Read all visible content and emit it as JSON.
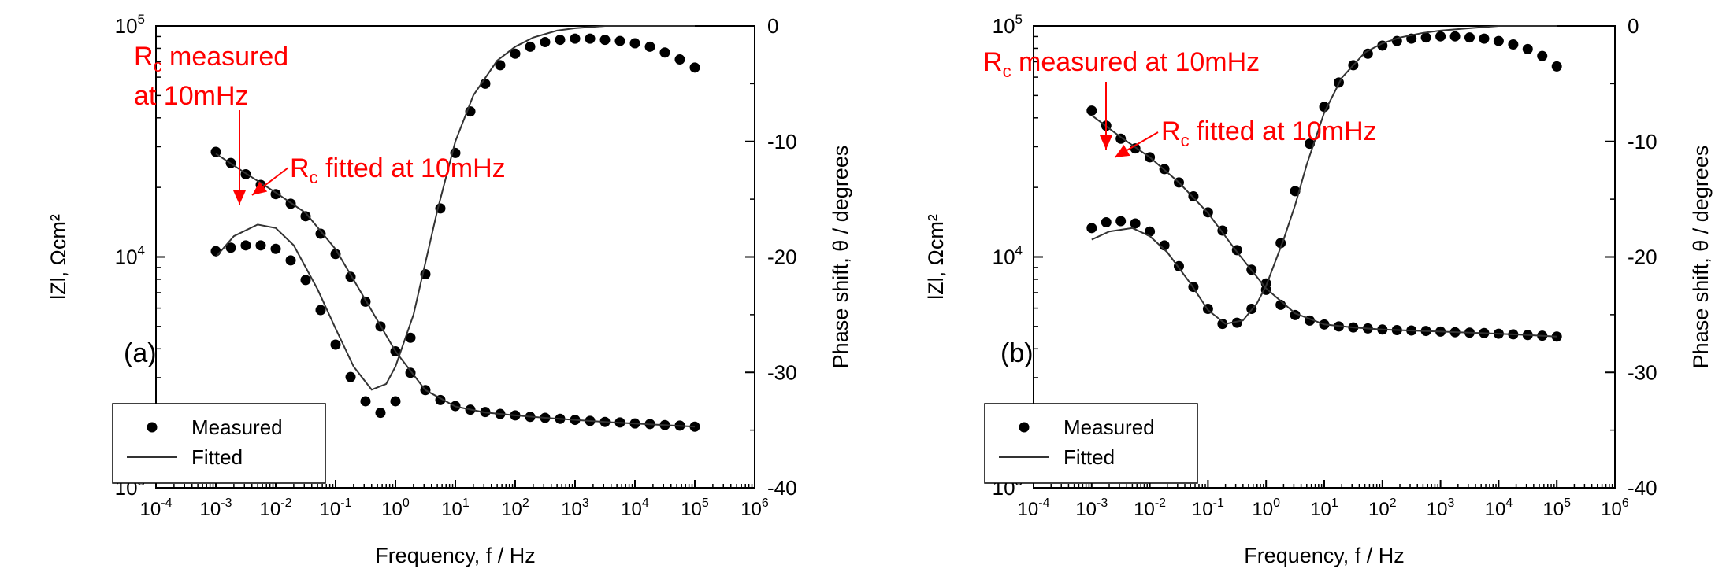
{
  "chart_data": [
    {
      "type": "scatter",
      "panel_label": "(a)",
      "xlabel": "Frequency, f / Hz",
      "ylabel_left": "lZl, Ωcm²",
      "ylabel_right": "Phase shift, θ / degrees",
      "x_scale": "log",
      "y_left_scale": "log",
      "xlim": [
        0.0001,
        1000000
      ],
      "y_left_lim": [
        1000,
        100000
      ],
      "y_right_lim": [
        -40,
        0
      ],
      "x_ticks": [
        {
          "base": "10",
          "exp": "-4"
        },
        {
          "base": "10",
          "exp": "-3"
        },
        {
          "base": "10",
          "exp": "-2"
        },
        {
          "base": "10",
          "exp": "-1"
        },
        {
          "base": "10",
          "exp": "0"
        },
        {
          "base": "10",
          "exp": "1"
        },
        {
          "base": "10",
          "exp": "2"
        },
        {
          "base": "10",
          "exp": "3"
        },
        {
          "base": "10",
          "exp": "4"
        },
        {
          "base": "10",
          "exp": "5"
        },
        {
          "base": "10",
          "exp": "6"
        }
      ],
      "y_left_ticks": [
        {
          "base": "10",
          "exp": "3"
        },
        {
          "base": "10",
          "exp": "4"
        },
        {
          "base": "10",
          "exp": "5"
        }
      ],
      "y_right_ticks": [
        "0",
        "-10",
        "-20",
        "-30",
        "-40"
      ],
      "legend": {
        "placement": "bottom-left",
        "entries": [
          "Measured",
          "Fitted"
        ]
      },
      "annotations": [
        {
          "sub": "c",
          "lines": [
            "R",
            " measured",
            "at 10mHz"
          ]
        },
        {
          "sub": "c",
          "lines": [
            "R",
            " fitted at 10mHz"
          ]
        }
      ],
      "series": [
        {
          "name": "Measured",
          "kind": "magnitude",
          "axis": "left",
          "x": [
            0.001,
            0.00178,
            0.00316,
            0.00562,
            0.01,
            0.0178,
            0.0316,
            0.0562,
            0.1,
            0.178,
            0.316,
            0.562,
            1,
            1.78,
            3.16,
            5.62,
            10,
            17.8,
            31.6,
            56.2,
            100,
            178,
            316,
            562,
            1000,
            1780,
            3160,
            5620,
            10000,
            17800,
            31600,
            56200,
            100000
          ],
          "y": [
            28500,
            25500,
            22800,
            20500,
            18700,
            17000,
            15000,
            12600,
            10300,
            8200,
            6400,
            5000,
            3900,
            3150,
            2650,
            2400,
            2260,
            2180,
            2130,
            2090,
            2060,
            2030,
            2010,
            1990,
            1970,
            1950,
            1930,
            1920,
            1900,
            1890,
            1870,
            1860,
            1840
          ]
        },
        {
          "name": "Measured",
          "kind": "phase",
          "axis": "right",
          "x": [
            0.001,
            0.00178,
            0.00316,
            0.00562,
            0.01,
            0.0178,
            0.0316,
            0.0562,
            0.1,
            0.178,
            0.316,
            0.562,
            1,
            1.78,
            3.16,
            5.62,
            10,
            17.8,
            31.6,
            56.2,
            100,
            178,
            316,
            562,
            1000,
            1780,
            3160,
            5620,
            10000,
            17800,
            31600,
            56200,
            100000
          ],
          "y": [
            -19.5,
            -19.2,
            -19.0,
            -19.0,
            -19.3,
            -20.3,
            -22.0,
            -24.6,
            -27.6,
            -30.4,
            -32.5,
            -33.5,
            -32.5,
            -27.0,
            -21.5,
            -15.8,
            -11.0,
            -7.4,
            -5.0,
            -3.4,
            -2.4,
            -1.8,
            -1.4,
            -1.2,
            -1.1,
            -1.1,
            -1.2,
            -1.3,
            -1.5,
            -1.8,
            -2.3,
            -2.9,
            -3.6
          ]
        },
        {
          "name": "Fitted",
          "kind": "magnitude",
          "axis": "left",
          "x": [
            0.001,
            0.00316,
            0.01,
            0.0316,
            0.1,
            0.316,
            1,
            3.16,
            10,
            31.6,
            100,
            316,
            1000,
            3160,
            10000,
            31600,
            100000
          ],
          "y": [
            28000,
            23000,
            19000,
            15500,
            10800,
            6500,
            3900,
            2650,
            2250,
            2120,
            2060,
            2010,
            1970,
            1930,
            1900,
            1870,
            1840
          ]
        },
        {
          "name": "Fitted",
          "kind": "phase",
          "axis": "right",
          "x": [
            0.001,
            0.002,
            0.005,
            0.01,
            0.02,
            0.05,
            0.1,
            0.2,
            0.4,
            0.7,
            1,
            2,
            3.16,
            5,
            10,
            20,
            50,
            100,
            200,
            500,
            1000,
            3160,
            10000,
            100000
          ],
          "y": [
            -20.0,
            -18.2,
            -17.2,
            -17.5,
            -19.0,
            -22.8,
            -26.2,
            -29.5,
            -31.5,
            -31.0,
            -29.5,
            -25.0,
            -20.5,
            -16.0,
            -10.0,
            -6.0,
            -3.0,
            -1.8,
            -1.0,
            -0.4,
            -0.2,
            0,
            0,
            0
          ]
        }
      ]
    },
    {
      "type": "scatter",
      "panel_label": "(b)",
      "xlabel": "Frequency, f / Hz",
      "ylabel_left": "lZl, Ωcm²",
      "ylabel_right": "Phase shift, θ / degrees",
      "x_scale": "log",
      "y_left_scale": "log",
      "xlim": [
        0.0001,
        1000000
      ],
      "y_left_lim": [
        1000,
        100000
      ],
      "y_right_lim": [
        -40,
        0
      ],
      "x_ticks": [
        {
          "base": "10",
          "exp": "-4"
        },
        {
          "base": "10",
          "exp": "-3"
        },
        {
          "base": "10",
          "exp": "-2"
        },
        {
          "base": "10",
          "exp": "-1"
        },
        {
          "base": "10",
          "exp": "0"
        },
        {
          "base": "10",
          "exp": "1"
        },
        {
          "base": "10",
          "exp": "2"
        },
        {
          "base": "10",
          "exp": "3"
        },
        {
          "base": "10",
          "exp": "4"
        },
        {
          "base": "10",
          "exp": "5"
        },
        {
          "base": "10",
          "exp": "6"
        }
      ],
      "y_left_ticks": [
        {
          "base": "10",
          "exp": "3"
        },
        {
          "base": "10",
          "exp": "4"
        },
        {
          "base": "10",
          "exp": "5"
        }
      ],
      "y_right_ticks": [
        "0",
        "-10",
        "-20",
        "-30",
        "-40"
      ],
      "legend": {
        "placement": "bottom-left",
        "entries": [
          "Measured",
          "Fitted"
        ]
      },
      "annotations": [
        {
          "sub": "c",
          "lines": [
            "R",
            " measured at 10mHz"
          ]
        },
        {
          "sub": "c",
          "lines": [
            "R",
            " fitted at 10mHz"
          ]
        }
      ],
      "series": [
        {
          "name": "Measured",
          "kind": "magnitude",
          "axis": "left",
          "x": [
            0.001,
            0.00178,
            0.00316,
            0.00562,
            0.01,
            0.0178,
            0.0316,
            0.0562,
            0.1,
            0.178,
            0.316,
            0.562,
            1,
            1.78,
            3.16,
            5.62,
            10,
            17.8,
            31.6,
            56.2,
            100,
            178,
            316,
            562,
            1000,
            1780,
            3160,
            5620,
            10000,
            17800,
            31600,
            56200,
            100000
          ],
          "y": [
            43000,
            37000,
            32500,
            29500,
            27000,
            24000,
            21000,
            18300,
            15600,
            13000,
            10700,
            8800,
            7200,
            6200,
            5600,
            5300,
            5100,
            5000,
            4950,
            4900,
            4850,
            4820,
            4800,
            4780,
            4750,
            4720,
            4700,
            4680,
            4650,
            4620,
            4590,
            4560,
            4520
          ]
        },
        {
          "name": "Measured",
          "kind": "phase",
          "axis": "right",
          "x": [
            0.001,
            0.00178,
            0.00316,
            0.00562,
            0.01,
            0.0178,
            0.0316,
            0.0562,
            0.1,
            0.178,
            0.316,
            0.562,
            1,
            1.78,
            3.16,
            5.62,
            10,
            17.8,
            31.6,
            56.2,
            100,
            178,
            316,
            562,
            1000,
            1780,
            3160,
            5620,
            10000,
            17800,
            31600,
            56200,
            100000
          ],
          "y": [
            -17.5,
            -17.0,
            -16.9,
            -17.1,
            -17.8,
            -19.0,
            -20.8,
            -22.6,
            -24.5,
            -25.8,
            -25.7,
            -24.5,
            -22.3,
            -18.8,
            -14.3,
            -10.2,
            -7.0,
            -4.9,
            -3.4,
            -2.4,
            -1.7,
            -1.3,
            -1.1,
            -1.0,
            -0.9,
            -0.9,
            -1.0,
            -1.1,
            -1.3,
            -1.6,
            -2.0,
            -2.6,
            -3.5
          ]
        },
        {
          "name": "Fitted",
          "kind": "magnitude",
          "axis": "left",
          "x": [
            0.001,
            0.00316,
            0.01,
            0.0316,
            0.1,
            0.316,
            1,
            3.16,
            10,
            31.6,
            100,
            316,
            1000,
            3160,
            10000,
            31600,
            100000
          ],
          "y": [
            41000,
            33000,
            27000,
            21000,
            15500,
            10500,
            7300,
            5700,
            5100,
            4950,
            4850,
            4800,
            4750,
            4700,
            4650,
            4590,
            4520
          ]
        },
        {
          "name": "Fitted",
          "kind": "phase",
          "axis": "right",
          "x": [
            0.001,
            0.002,
            0.005,
            0.01,
            0.02,
            0.05,
            0.1,
            0.2,
            0.4,
            0.7,
            1,
            2,
            3.16,
            5,
            10,
            20,
            50,
            100,
            200,
            500,
            1000,
            3160,
            10000,
            100000
          ],
          "y": [
            -18.5,
            -17.8,
            -17.5,
            -18.2,
            -19.6,
            -22.3,
            -24.6,
            -25.8,
            -25.5,
            -24.0,
            -22.5,
            -18.5,
            -15.5,
            -12.0,
            -7.5,
            -4.5,
            -2.3,
            -1.5,
            -1.0,
            -0.6,
            -0.4,
            -0.2,
            0,
            0
          ]
        }
      ]
    }
  ],
  "colors": {
    "axis": "#000000",
    "marker": "#000000",
    "fit_line": "#333333",
    "annotation": "#ff0000"
  }
}
